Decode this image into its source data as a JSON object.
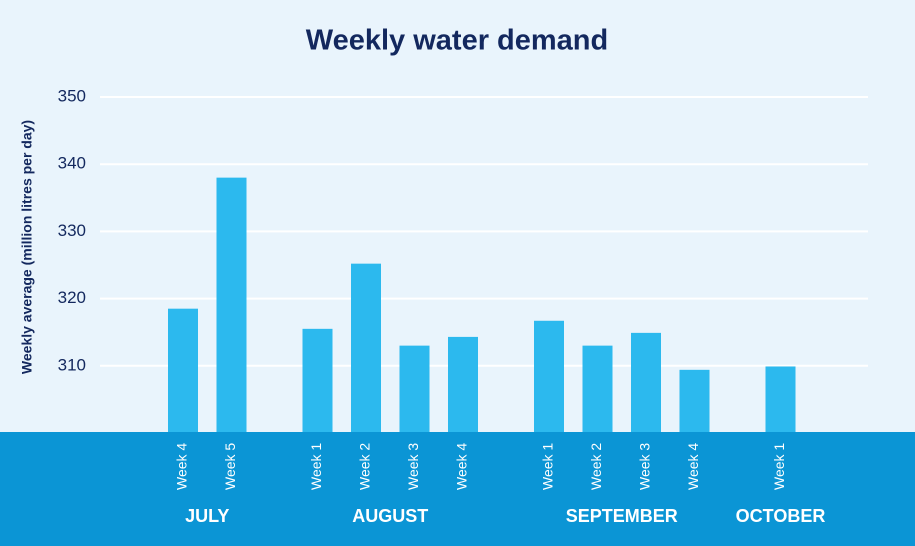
{
  "chart_data": {
    "type": "bar",
    "title": "Weekly water demand",
    "y_label": "Weekly average (million litres per day)",
    "color": "#2cb9ee",
    "grid": true,
    "ylim": [
      300,
      350
    ],
    "yticks": [
      310,
      320,
      330,
      340,
      350
    ],
    "groups": [
      {
        "label": "JULY",
        "categories": [
          "Week 4",
          "Week 5"
        ],
        "values": [
          318.5,
          338
        ]
      },
      {
        "label": "AUGUST",
        "categories": [
          "Week 1",
          "Week 2",
          "Week 3",
          "Week 4"
        ],
        "values": [
          315.5,
          325.2,
          313,
          314.3
        ]
      },
      {
        "label": "SEPTEMBER",
        "categories": [
          "Week 1",
          "Week 2",
          "Week 3",
          "Week 4"
        ],
        "values": [
          316.7,
          313,
          314.9,
          309.4
        ]
      },
      {
        "label": "OCTOBER",
        "categories": [
          "Week 1"
        ],
        "values": [
          309.9
        ]
      }
    ]
  }
}
